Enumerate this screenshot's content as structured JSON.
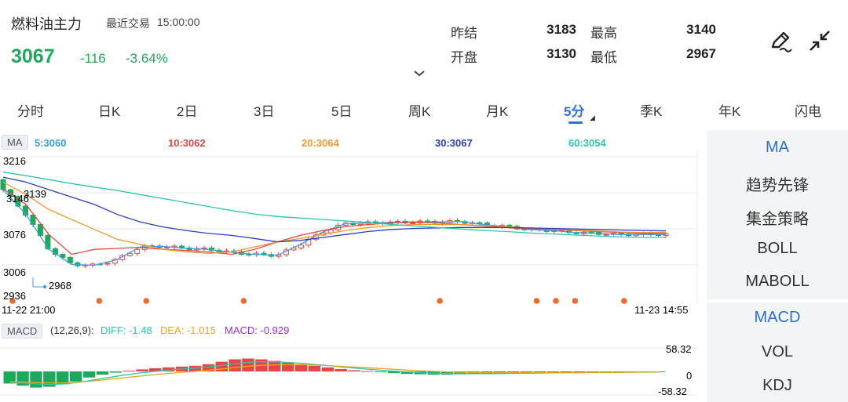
{
  "header": {
    "title": "燃料油主力",
    "recent_label": "最近交易",
    "recent_time": "15:00:00",
    "last_price": "3067",
    "change": "-116",
    "change_pct": "-3.64%",
    "quote": {
      "prev_settle_label": "昨结",
      "prev_settle": "3183",
      "high_label": "最高",
      "high": "3140",
      "open_label": "开盘",
      "open": "3130",
      "low_label": "最低",
      "low": "2967"
    }
  },
  "colors": {
    "up": "#e84545",
    "down": "#1fa85b",
    "accent": "#2c6fd6"
  },
  "tabs": [
    {
      "label": "分时"
    },
    {
      "label": "日K"
    },
    {
      "label": "2日"
    },
    {
      "label": "3日"
    },
    {
      "label": "5日"
    },
    {
      "label": "周K"
    },
    {
      "label": "月K"
    },
    {
      "label": "5分",
      "active": true
    },
    {
      "label": "季K"
    },
    {
      "label": "年K"
    },
    {
      "label": "闪电"
    }
  ],
  "ma_legend": {
    "badge": "MA",
    "items": [
      {
        "text": "5:3060",
        "color": "#3d9ee0"
      },
      {
        "text": "10:3062",
        "color": "#e84545"
      },
      {
        "text": "20:3064",
        "color": "#f09a2e"
      },
      {
        "text": "30:3067",
        "color": "#2a3fc0"
      },
      {
        "text": "60:3054",
        "color": "#2ec4b0"
      }
    ]
  },
  "price_axis": {
    "top": "3216",
    "mid": "3076",
    "low": "3006",
    "bottom": "2936"
  },
  "price_annotations": {
    "high_mark": "3139",
    "left_mark": "3146",
    "low_mark": "2968"
  },
  "time_axis": {
    "start": "11-22 21:00",
    "end": "11-23 14:55"
  },
  "macd_legend": {
    "badge": "MACD",
    "params": "(12,26,9):",
    "diff": "DIFF: -1.48",
    "dea": "DEA: -1.015",
    "macd": "MACD: -0.929",
    "diff_color": "#2ec4b0",
    "dea_color": "#e0a820",
    "macd_color": "#9b30d0"
  },
  "macd_axis": {
    "top": "58.32",
    "zero": "0",
    "bottom": "-58.32"
  },
  "side_panel": {
    "items": [
      {
        "label": "MA",
        "active": true
      },
      {
        "label": "趋势先锋"
      },
      {
        "label": "集金策略"
      },
      {
        "label": "BOLL"
      },
      {
        "label": "MABOLL"
      },
      {
        "label": "MACD",
        "active": true
      },
      {
        "label": "VOL"
      },
      {
        "label": "KDJ"
      }
    ]
  },
  "chart_data": [
    {
      "type": "line",
      "subtype": "candlestick-5min",
      "x_range": [
        "11-22 21:00",
        "11-23 14:55"
      ],
      "ylim": [
        2936,
        3216
      ],
      "series": [
        {
          "name": "5:3060",
          "values": [
            3150,
            3100,
            3030,
            3000,
            2998,
            3010,
            3035,
            3036,
            3032,
            3030,
            3024,
            3020,
            3018,
            3040,
            3065,
            3082,
            3083,
            3084,
            3085,
            3085,
            3086,
            3080,
            3076,
            3070,
            3068,
            3064,
            3062,
            3060,
            3060,
            3060
          ]
        },
        {
          "name": "10:3062",
          "values": [
            3152,
            3120,
            3060,
            3020,
            3030,
            3032,
            3034,
            3030,
            3028,
            3025,
            3020,
            3030,
            3045,
            3058,
            3068,
            3076,
            3080,
            3083,
            3085,
            3083,
            3080,
            3077,
            3074,
            3071,
            3070,
            3068,
            3066,
            3064,
            3062,
            3062
          ]
        },
        {
          "name": "20:3064",
          "values": [
            3165,
            3140,
            3110,
            3090,
            3070,
            3050,
            3040,
            3030,
            3025,
            3022,
            3025,
            3035,
            3045,
            3052,
            3060,
            3068,
            3074,
            3078,
            3080,
            3080,
            3080,
            3078,
            3076,
            3073,
            3071,
            3069,
            3067,
            3065,
            3064,
            3064
          ]
        },
        {
          "name": "30:3067",
          "values": [
            3175,
            3165,
            3150,
            3135,
            3120,
            3100,
            3085,
            3075,
            3068,
            3062,
            3058,
            3052,
            3045,
            3048,
            3054,
            3060,
            3066,
            3070,
            3072,
            3073,
            3074,
            3074,
            3074,
            3073,
            3072,
            3071,
            3070,
            3069,
            3068,
            3067
          ]
        },
        {
          "name": "60:3054",
          "values": [
            3185,
            3178,
            3170,
            3162,
            3155,
            3148,
            3140,
            3132,
            3124,
            3116,
            3108,
            3101,
            3096,
            3093,
            3090,
            3087,
            3084,
            3080,
            3077,
            3074,
            3071,
            3068,
            3066,
            3063,
            3061,
            3059,
            3057,
            3055,
            3054,
            3054
          ]
        }
      ]
    },
    {
      "type": "bar",
      "subtype": "macd-histogram",
      "ylim": [
        -58.32,
        58.32
      ],
      "values": [
        -30,
        -35,
        -40,
        -38,
        -32,
        -25,
        -15,
        -8,
        -3,
        2,
        5,
        8,
        10,
        12,
        14,
        18,
        24,
        30,
        32,
        30,
        26,
        22,
        18,
        14,
        10,
        6,
        3,
        1,
        -2,
        -4,
        -6,
        -7,
        -8,
        -8,
        -7,
        -6,
        -6,
        -5,
        -5,
        -4,
        -4,
        -3,
        -3,
        -3,
        -2,
        -2,
        -2,
        -1,
        -1,
        -1
      ]
    }
  ]
}
